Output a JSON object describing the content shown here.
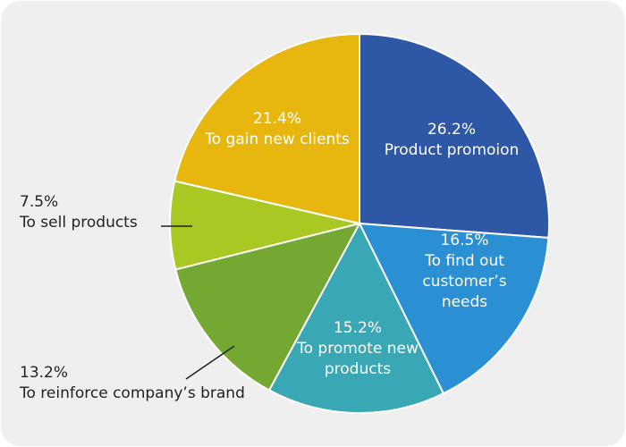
{
  "chart_data": {
    "type": "pie",
    "categories": [
      "Product promoion",
      "To find out customer’s needs",
      "To promote new products",
      "To reinforce company’s brand",
      "To sell products",
      "To gain new clients"
    ],
    "values": [
      26.2,
      16.5,
      15.2,
      13.2,
      7.5,
      21.4
    ],
    "value_labels": [
      "26.2%",
      "16.5%",
      "15.2%",
      "13.2%",
      "7.5%",
      "21.4%"
    ],
    "colors": [
      "#2e58a6",
      "#2b8fd3",
      "#3aa7b4",
      "#74a832",
      "#a9c824",
      "#e7b710"
    ]
  }
}
